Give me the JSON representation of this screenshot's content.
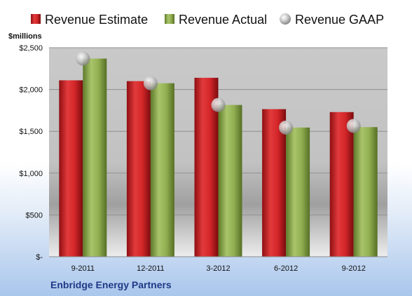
{
  "chart_data": {
    "type": "bar",
    "categories": [
      "9-2011",
      "12-2011",
      "3-2012",
      "6-2012",
      "9-2012"
    ],
    "series": [
      {
        "name": "Revenue Estimate",
        "type": "bar",
        "color": "#cc1f24",
        "values": [
          2110,
          2100,
          2140,
          1765,
          1730
        ]
      },
      {
        "name": "Revenue Actual",
        "type": "bar",
        "color": "#8aa84a",
        "values": [
          2370,
          2075,
          1815,
          1545,
          1550
        ]
      },
      {
        "name": "Revenue GAAP",
        "type": "scatter",
        "color": "#b8b8b8",
        "values": [
          2370,
          2075,
          1815,
          1545,
          1565
        ]
      }
    ],
    "ylabel": "$millions",
    "ylim": [
      0,
      2500
    ],
    "yticks": [
      0,
      500,
      1000,
      1500,
      2000,
      2500
    ],
    "ytick_labels": [
      "$-",
      "$500",
      "$1,000",
      "$1,500",
      "$2,000",
      "$2,500"
    ],
    "grid": true,
    "legend": "top",
    "footer": "Enbridge Energy Partners"
  }
}
